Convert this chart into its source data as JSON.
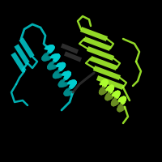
{
  "background_color": "#000000",
  "figsize": [
    2.0,
    2.0
  ],
  "dpi": 100,
  "chain1_color": "#00CED1",
  "chain1_dark": "#008B8B",
  "chain2_color": "#ADFF2F",
  "chain2_dark": "#6B8E23",
  "gray_color": "#555555",
  "gray_dark": "#333333"
}
